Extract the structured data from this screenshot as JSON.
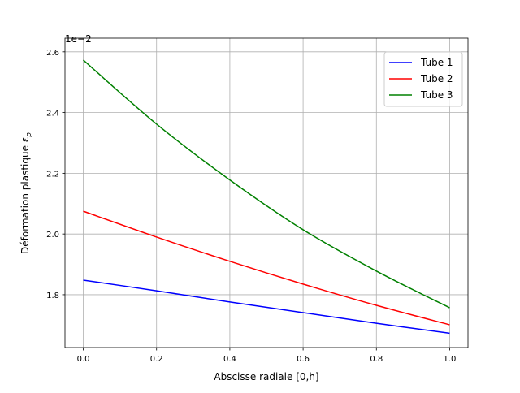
{
  "chart_data": {
    "type": "line",
    "title": "",
    "xlabel": "Abscisse radiale [0,h]",
    "ylabel": "Déformation plastique ε",
    "ylabel_subscript": "p",
    "y_offset_label": "1e−2",
    "xlim": [
      -0.05,
      1.05
    ],
    "ylim": [
      1.626,
      2.645
    ],
    "xticks": [
      0.0,
      0.2,
      0.4,
      0.6,
      0.8,
      1.0
    ],
    "xtick_labels": [
      "0.0",
      "0.2",
      "0.4",
      "0.6",
      "0.8",
      "1.0"
    ],
    "yticks": [
      1.8,
      2.0,
      2.2,
      2.4,
      2.6
    ],
    "ytick_labels": [
      "1.8",
      "2.0",
      "2.2",
      "2.4",
      "2.6"
    ],
    "grid": true,
    "legend_position": "top-right",
    "x": [
      0.0,
      0.2,
      0.4,
      0.6,
      0.8,
      1.0
    ],
    "series": [
      {
        "name": "Tube 1",
        "color": "#0000ff",
        "values": [
          1.848,
          1.813,
          1.776,
          1.741,
          1.706,
          1.673
        ]
      },
      {
        "name": "Tube 2",
        "color": "#ff0000",
        "values": [
          2.075,
          1.99,
          1.91,
          1.835,
          1.765,
          1.701
        ]
      },
      {
        "name": "Tube 3",
        "color": "#008000",
        "values": [
          2.573,
          2.362,
          2.178,
          2.014,
          1.878,
          1.757
        ]
      }
    ]
  }
}
